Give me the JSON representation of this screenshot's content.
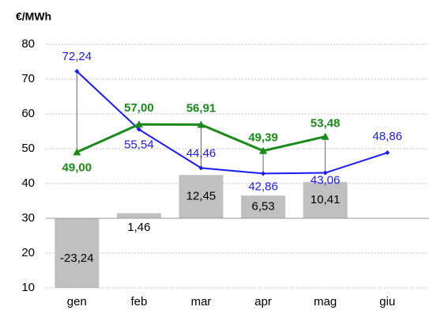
{
  "chart_data": {
    "type": "line-bar",
    "y_label": "€/MWh",
    "categories": [
      "gen",
      "feb",
      "mar",
      "apr",
      "mag",
      "giu"
    ],
    "ylim": [
      10,
      80
    ],
    "yticks": [
      10,
      20,
      30,
      40,
      50,
      60,
      70,
      80
    ],
    "grid": true,
    "bar_baseline": 30,
    "bars": {
      "color": "#c0c0c0",
      "values": [
        -23.24,
        1.46,
        12.45,
        6.53,
        10.41,
        null
      ],
      "value_labels": [
        "-23,24",
        "1,46",
        "12,45",
        "6,53",
        "10,41",
        null
      ]
    },
    "series": [
      {
        "color": "#1a1aff",
        "marker": "diamond",
        "values": [
          72.24,
          55.54,
          44.46,
          42.86,
          43.06,
          48.86
        ],
        "value_labels": [
          "72,24",
          "55,54",
          "44,46",
          "42,86",
          "43,06",
          "48,86"
        ]
      },
      {
        "color": "#1a8a1a",
        "marker": "triangle",
        "values": [
          49.0,
          57.0,
          56.91,
          49.39,
          53.48,
          null
        ],
        "value_labels": [
          "49,00",
          "57,00",
          "56,91",
          "49,39",
          "53,48",
          null
        ]
      }
    ]
  }
}
